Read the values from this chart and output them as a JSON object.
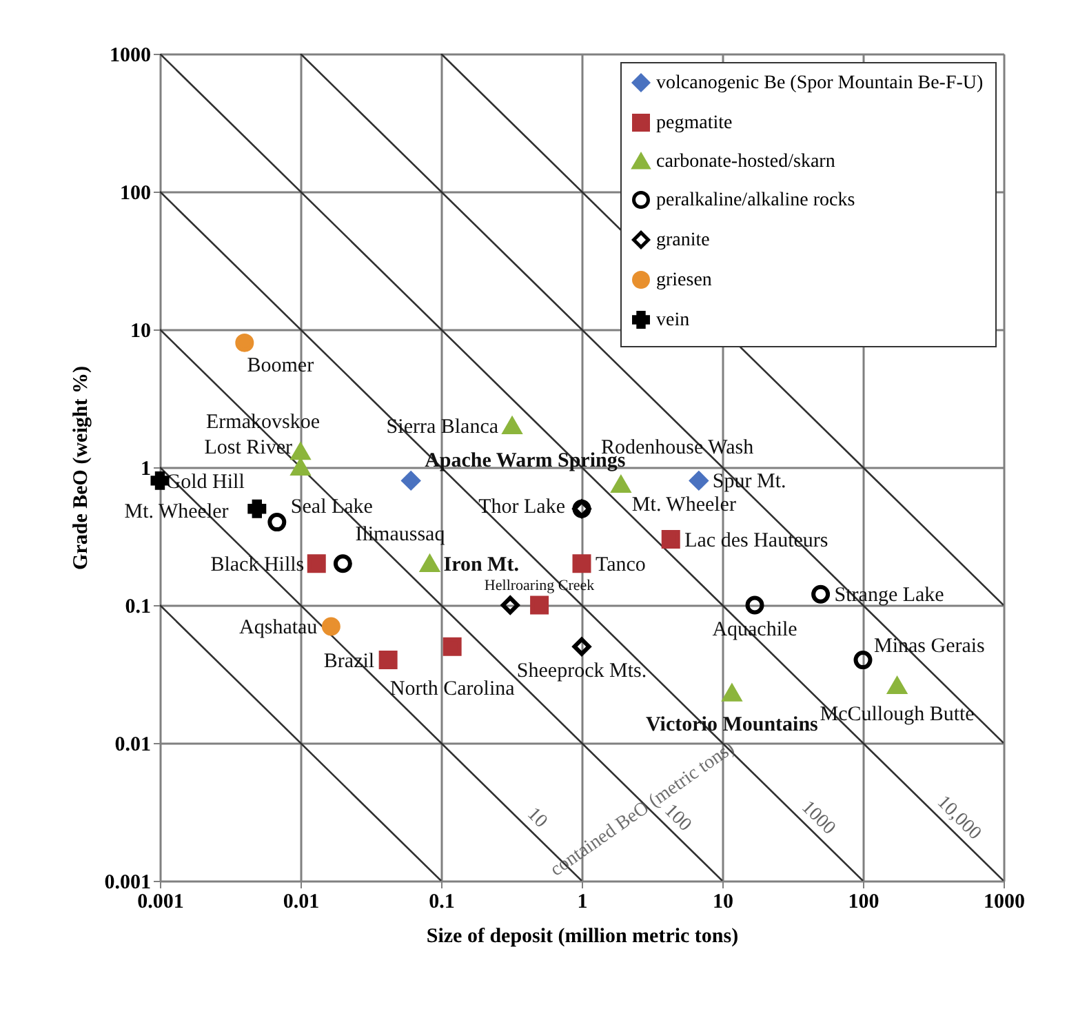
{
  "chart_data": {
    "type": "scatter",
    "xlabel": "Size of deposit (million metric tons)",
    "ylabel": "Grade BeO (weight %)",
    "log": "xy",
    "xlim": [
      0.001,
      1000
    ],
    "ylim": [
      0.001,
      1000
    ],
    "xticks": [
      0.001,
      0.01,
      0.1,
      1,
      10,
      100,
      1000
    ],
    "yticks": [
      0.001,
      0.01,
      0.1,
      1,
      10,
      100,
      1000
    ],
    "grid": true,
    "legend": "top right",
    "series": [
      {
        "name": "volcanogenic Be (Spor Mountain Be-F-U)",
        "marker": "diamond",
        "color": "#4a72c0",
        "x": [
          0.061,
          6.8
        ],
        "values": [
          0.8,
          0.8
        ]
      },
      {
        "name": "pegmatite",
        "marker": "square",
        "color": "#b03236",
        "x": [
          0.013,
          0.042,
          0.12,
          1,
          0.5,
          4.3
        ],
        "values": [
          0.2,
          0.04,
          0.05,
          0.2,
          0.1,
          0.3
        ]
      },
      {
        "name": "carbonate-hosted/skarn",
        "marker": "triangle",
        "color": "#8cb53c",
        "x": [
          0.01,
          0.01,
          0.32,
          0.083,
          1.9,
          11.7,
          175
        ],
        "values": [
          1.3,
          1.0,
          2,
          0.2,
          0.75,
          0.023,
          0.026
        ]
      },
      {
        "name": "peralkaline/alkaline rocks",
        "marker": "circle",
        "color": "#000000",
        "x": [
          0.0068,
          0.02,
          1,
          17,
          50,
          100
        ],
        "values": [
          0.4,
          0.2,
          0.5,
          0.1,
          0.12,
          0.04
        ]
      },
      {
        "name": "granite",
        "marker": "diamond",
        "color": "#000000",
        "x": [
          0.31,
          1,
          1
        ],
        "values": [
          0.1,
          0.5,
          0.05
        ]
      },
      {
        "name": "griesen",
        "marker": "circle",
        "color": "#e8902e",
        "x": [
          0.004,
          0.0165
        ],
        "values": [
          8,
          0.07
        ]
      },
      {
        "name": "vein",
        "marker": "cross",
        "color": "#000000",
        "x": [
          0.001,
          0.0049
        ],
        "values": [
          0.8,
          0.5
        ]
      },
      {
        "type": "line",
        "color": "#303030",
        "x": [
          0.001,
          0.1
        ],
        "values": [
          0.1,
          0.001
        ]
      },
      {
        "name": "10",
        "type": "line",
        "color": "#303030",
        "x": [
          0.001,
          1
        ],
        "values": [
          1,
          0.001
        ]
      },
      {
        "name": "100",
        "type": "line",
        "color": "#303030",
        "x": [
          0.001,
          10
        ],
        "values": [
          10,
          0.001
        ]
      },
      {
        "name": "1000",
        "type": "line",
        "color": "#303030",
        "x": [
          0.001,
          100
        ],
        "values": [
          100,
          0.001
        ]
      },
      {
        "name": "10,000",
        "type": "line",
        "color": "#303030",
        "x": [
          0.001,
          1000
        ],
        "values": [
          1000,
          0.001
        ]
      },
      {
        "type": "line",
        "color": "#303030",
        "x": [
          0.01,
          1000
        ],
        "values": [
          1000,
          0.01
        ]
      },
      {
        "type": "line",
        "color": "#303030",
        "x": [
          0.1,
          1000
        ],
        "values": [
          1000,
          0.1
        ]
      }
    ],
    "annotations": [
      {
        "text": "Boomer",
        "x": 0.004,
        "y": 8
      },
      {
        "text": "Apache Warm Springs",
        "x": 0.061,
        "y": 0.8
      },
      {
        "text": "Ermakovskoe",
        "x": 0.01,
        "y": 1.3
      },
      {
        "text": "Lost River",
        "x": 0.01,
        "y": 1.0
      },
      {
        "text": "Gold Hill",
        "x": 0.0049,
        "y": 0.5
      },
      {
        "text": "Seal Lake",
        "x": 0.0068,
        "y": 0.4
      },
      {
        "text": "Mt. Wheeler",
        "x": 0.001,
        "y": 0.8
      },
      {
        "text": "Ilimaussaq",
        "x": 0.02,
        "y": 0.2
      },
      {
        "text": "Black Hills",
        "x": 0.013,
        "y": 0.2
      },
      {
        "text": "Sierra Blanca",
        "x": 0.32,
        "y": 2
      },
      {
        "text": "Iron Mt.",
        "x": 0.083,
        "y": 0.2
      },
      {
        "text": "Thor Lake",
        "x": 1,
        "y": 0.5
      },
      {
        "text": "Rodenhouse Wash",
        "x": 1,
        "y": 0.5
      },
      {
        "text": "Mt. Wheeler",
        "x": 1.9,
        "y": 0.75
      },
      {
        "text": "Spur Mt.",
        "x": 6.8,
        "y": 0.8
      },
      {
        "text": "Lac des Hauteurs",
        "x": 4.3,
        "y": 0.3
      },
      {
        "text": "Tanco",
        "x": 1,
        "y": 0.2
      },
      {
        "text": "Hellroaring Creek",
        "x": 0.5,
        "y": 0.1
      },
      {
        "text": "Strange Lake",
        "x": 50,
        "y": 0.12
      },
      {
        "text": "Aquachile",
        "x": 17,
        "y": 0.1
      },
      {
        "text": "Minas Gerais",
        "x": 100,
        "y": 0.04
      },
      {
        "text": "Sheeprock Mts.",
        "x": 1,
        "y": 0.05
      },
      {
        "text": "Aqshatau",
        "x": 0.0165,
        "y": 0.07
      },
      {
        "text": "Brazil",
        "x": 0.042,
        "y": 0.04
      },
      {
        "text": "North Carolina",
        "x": 0.12,
        "y": 0.05
      },
      {
        "text": "Victorio Mountains",
        "x": 11.7,
        "y": 0.023
      },
      {
        "text": "McCullough Butte",
        "x": 175,
        "y": 0.026
      },
      "contained BeO (metric tons)"
    ]
  }
}
